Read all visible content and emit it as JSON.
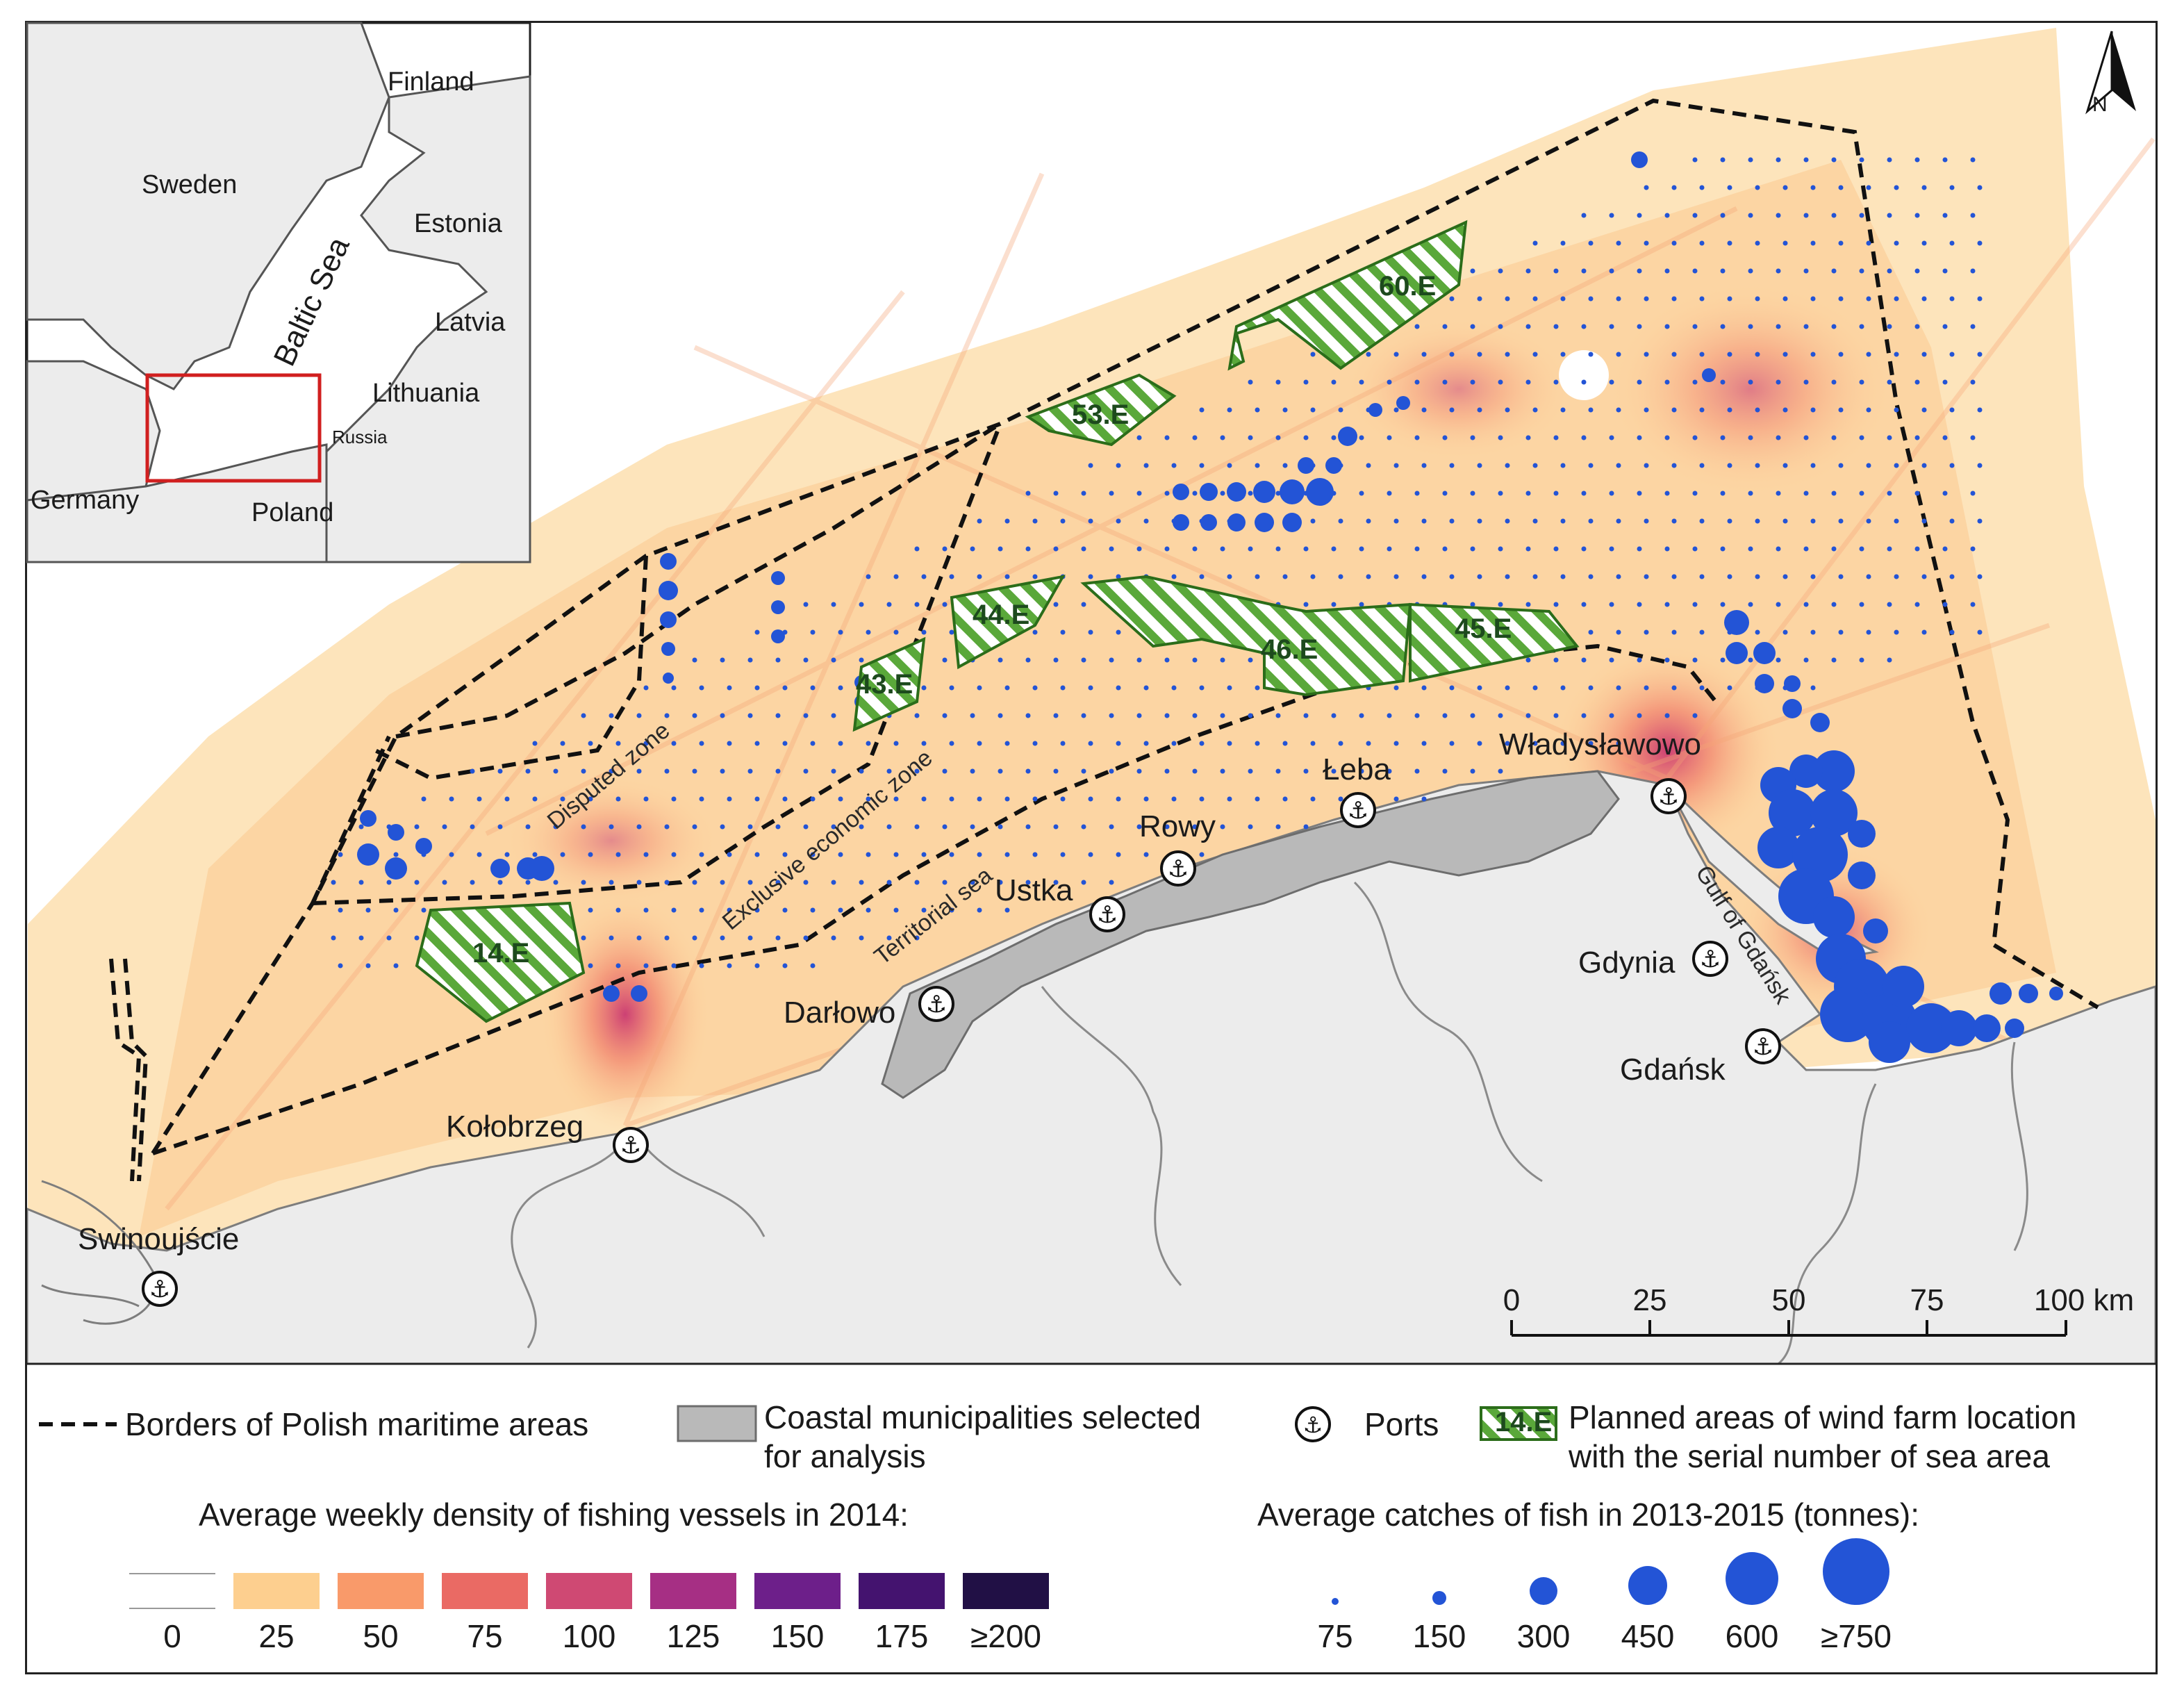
{
  "inset": {
    "labels": {
      "finland": "Finland",
      "sweden": "Sweden",
      "estonia": "Estonia",
      "baltic_sea": "Baltic Sea",
      "latvia": "Latvia",
      "lithuania": "Lithuania",
      "russia": "Russia",
      "germany": "Germany",
      "poland": "Poland"
    }
  },
  "map": {
    "north_arrow": "N",
    "ports": {
      "swinoujscie": "Swinoujście",
      "kolobrzeg": "Kołobrzeg",
      "darlowo": "Darłowo",
      "ustka": "Ustka",
      "rowy": "Rowy",
      "leba": "Łeba",
      "wladyslawowo": "Władysławowo",
      "gdynia": "Gdynia",
      "gdansk": "Gdańsk"
    },
    "zones": {
      "disputed": "Disputed zone",
      "eez": "Exclusive economic zone",
      "territorial": "Territorial sea",
      "gulf": "Gulf of Gdańsk"
    },
    "wind_farms": {
      "a60": "60.E",
      "a53": "53.E",
      "a44": "44.E",
      "a43": "43.E",
      "a46": "46.E",
      "a45": "45.E",
      "a14": "14.E"
    },
    "scale_bar": {
      "ticks": [
        "0",
        "25",
        "50",
        "75",
        "100 km"
      ]
    }
  },
  "legend": {
    "borders": "Borders of Polish maritime areas",
    "municipalities_line1": "Coastal municipalities selected",
    "municipalities_line2": "for analysis",
    "ports": "Ports",
    "windfarm_icon_label": "14.E",
    "windfarm_line1": "Planned areas of wind farm location",
    "windfarm_line2": "with the serial number of sea area",
    "density_title": "Average weekly density of fishing vessels in 2014:",
    "density_classes": [
      {
        "label": "0",
        "color": "#ffffff"
      },
      {
        "label": "25",
        "color": "#fdcf8f"
      },
      {
        "label": "50",
        "color": "#f99a6a"
      },
      {
        "label": "75",
        "color": "#ea6a64"
      },
      {
        "label": "100",
        "color": "#cf4973"
      },
      {
        "label": "125",
        "color": "#a62f84"
      },
      {
        "label": "150",
        "color": "#6d1f8a"
      },
      {
        "label": "175",
        "color": "#44136f"
      },
      {
        "label": "≥200",
        "color": "#211045"
      }
    ],
    "catch_title": "Average catches of fish in 2013-2015 (tonnes):",
    "catch_classes": [
      "75",
      "150",
      "300",
      "450",
      "600",
      "≥750"
    ],
    "catch_color": "#2354d6"
  }
}
